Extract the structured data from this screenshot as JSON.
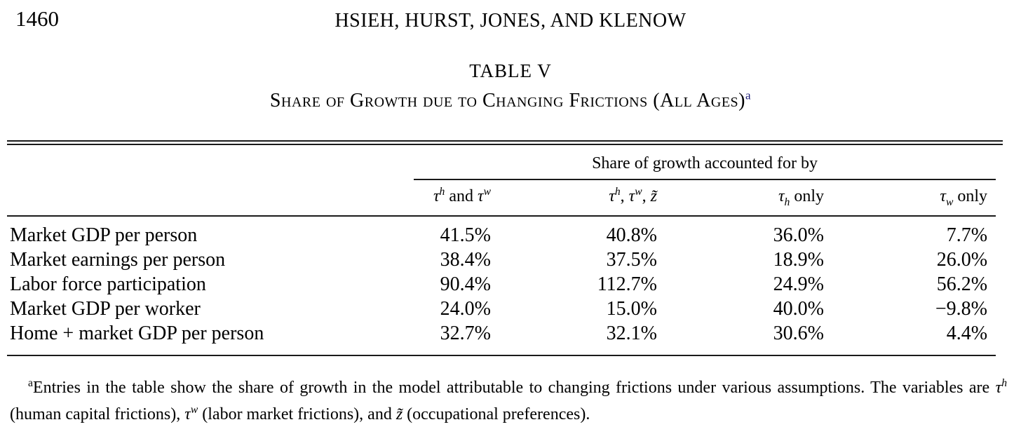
{
  "page": {
    "number": "1460",
    "running_head": "HSIEH, HURST, JONES, AND KLENOW"
  },
  "colors": {
    "text": "#000000",
    "rule": "#1a1a1a",
    "note_link": "#21217a"
  },
  "table": {
    "label": "TABLE V",
    "caption": "Share of Growth due to Changing Frictions (All Ages)",
    "caption_note_mark": "a",
    "spanner": "Share of growth accounted for by",
    "columns": [
      [
        {
          "t": "τ",
          "i": 1
        },
        {
          "t": "h",
          "f": "sup",
          "i": 1
        },
        {
          "t": " and "
        },
        {
          "t": "τ",
          "i": 1
        },
        {
          "t": "w",
          "f": "sup",
          "i": 1
        }
      ],
      [
        {
          "t": "τ",
          "i": 1
        },
        {
          "t": "h",
          "f": "sup",
          "i": 1
        },
        {
          "t": ", "
        },
        {
          "t": "τ",
          "i": 1
        },
        {
          "t": "w",
          "f": "sup",
          "i": 1
        },
        {
          "t": ", "
        },
        {
          "t": "z̃",
          "i": 1
        }
      ],
      [
        {
          "t": "τ",
          "i": 1
        },
        {
          "t": "h",
          "f": "sub",
          "i": 1
        },
        {
          "t": " only"
        }
      ],
      [
        {
          "t": "τ",
          "i": 1
        },
        {
          "t": "w",
          "f": "sub",
          "i": 1
        },
        {
          "t": " only"
        }
      ]
    ],
    "rows": [
      {
        "label": "Market GDP per person",
        "values": [
          "41.5%",
          "40.8%",
          "36.0%",
          "7.7%"
        ]
      },
      {
        "label": "Market earnings per person",
        "values": [
          "38.4%",
          "37.5%",
          "18.9%",
          "26.0%"
        ]
      },
      {
        "label": "Labor force participation",
        "values": [
          "90.4%",
          "112.7%",
          "24.9%",
          "56.2%"
        ]
      },
      {
        "label": "Market GDP per worker",
        "values": [
          "24.0%",
          "15.0%",
          "40.0%",
          "−9.8%"
        ]
      },
      {
        "label": "Home + market GDP per person",
        "values": [
          "32.7%",
          "32.1%",
          "30.6%",
          "4.4%"
        ]
      }
    ],
    "footnote": [
      {
        "t": "a",
        "f": "sup"
      },
      {
        "t": "Entries in the table show the share of growth in the model attributable to changing frictions under various assumptions. The variables are "
      },
      {
        "t": "τ",
        "i": 1
      },
      {
        "t": "h",
        "f": "sup",
        "i": 1
      },
      {
        "t": " (human capital frictions), "
      },
      {
        "t": "τ",
        "i": 1
      },
      {
        "t": "w",
        "f": "sup",
        "i": 1
      },
      {
        "t": " (labor market frictions), and "
      },
      {
        "t": "z̃",
        "i": 1
      },
      {
        "t": " (occupational preferences)."
      }
    ]
  }
}
